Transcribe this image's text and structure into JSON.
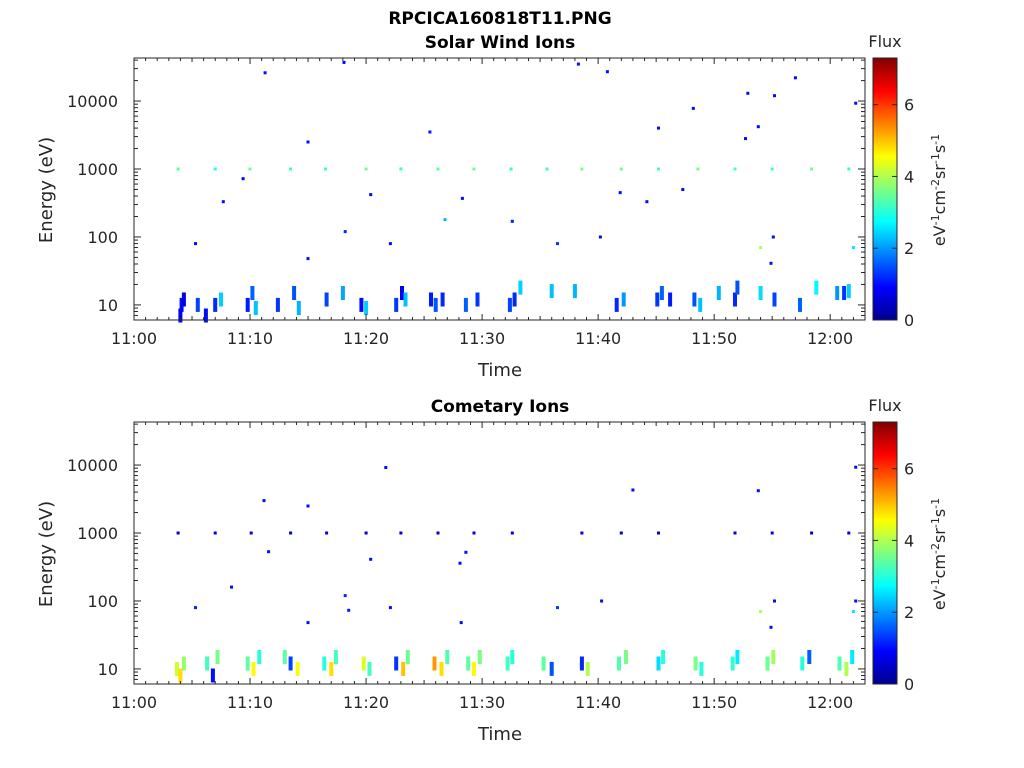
{
  "figure": {
    "filename": "RPCICA160818T11.PNG"
  },
  "colorbar": {
    "title": "Flux",
    "label": "eV-1cm-2sr-1s-1",
    "unit_parts": [
      "eV",
      "-1",
      "cm",
      "-2",
      "sr",
      "-1",
      "s",
      "-1"
    ],
    "range": [
      0,
      7.3
    ],
    "ticks": [
      0,
      2,
      4,
      6
    ],
    "tick_labels": [
      "0",
      "2",
      "4",
      "6"
    ],
    "colormap": "jet"
  },
  "colors": {
    "axis": "#262626",
    "background": "#ffffff"
  },
  "chart_data": [
    {
      "type": "heatmap",
      "title": "Solar Wind Ions",
      "xlabel": "Time",
      "ylabel": "Energy (eV)",
      "xlim": [
        "11:00",
        "12:03"
      ],
      "ylim": [
        6,
        43000
      ],
      "yscale": "log",
      "grid": false,
      "x_ticks": [
        "11:00",
        "11:10",
        "11:20",
        "11:30",
        "11:40",
        "11:50",
        "12:00"
      ],
      "y_ticks": [
        10,
        100,
        1000,
        10000
      ],
      "y_tick_labels": [
        "10",
        "100",
        "1000",
        "10000"
      ],
      "cells": [
        {
          "t": 4.1,
          "e": 10,
          "v": 1.0
        },
        {
          "t": 4.3,
          "e": 12,
          "v": 0.8
        },
        {
          "t": 4.0,
          "e": 7,
          "v": 0.9
        },
        {
          "t": 5.5,
          "e": 10,
          "v": 1.4
        },
        {
          "t": 6.2,
          "e": 7,
          "v": 1.0
        },
        {
          "t": 7.0,
          "e": 10,
          "v": 1.2
        },
        {
          "t": 7.5,
          "e": 12,
          "v": 2.4
        },
        {
          "t": 9.8,
          "e": 10,
          "v": 1.1
        },
        {
          "t": 10.2,
          "e": 15,
          "v": 1.6
        },
        {
          "t": 10.5,
          "e": 9,
          "v": 2.3
        },
        {
          "t": 12.4,
          "e": 10,
          "v": 1.3
        },
        {
          "t": 13.8,
          "e": 15,
          "v": 1.5
        },
        {
          "t": 14.2,
          "e": 9,
          "v": 2.2
        },
        {
          "t": 16.6,
          "e": 12,
          "v": 1.4
        },
        {
          "t": 18.0,
          "e": 15,
          "v": 2.1
        },
        {
          "t": 19.6,
          "e": 10,
          "v": 1.0
        },
        {
          "t": 20.0,
          "e": 9,
          "v": 2.4
        },
        {
          "t": 22.6,
          "e": 10,
          "v": 1.3
        },
        {
          "t": 23.1,
          "e": 15,
          "v": 0.9
        },
        {
          "t": 23.4,
          "e": 12,
          "v": 2.3
        },
        {
          "t": 25.6,
          "e": 12,
          "v": 1.1
        },
        {
          "t": 26.0,
          "e": 10,
          "v": 1.5
        },
        {
          "t": 26.6,
          "e": 12,
          "v": 1.2
        },
        {
          "t": 28.6,
          "e": 10,
          "v": 1.6
        },
        {
          "t": 29.6,
          "e": 12,
          "v": 1.3
        },
        {
          "t": 32.4,
          "e": 10,
          "v": 1.4
        },
        {
          "t": 32.8,
          "e": 12,
          "v": 1.2
        },
        {
          "t": 33.3,
          "e": 18,
          "v": 2.4
        },
        {
          "t": 36.0,
          "e": 16,
          "v": 2.3
        },
        {
          "t": 38.0,
          "e": 16,
          "v": 2.2
        },
        {
          "t": 41.6,
          "e": 10,
          "v": 1.2
        },
        {
          "t": 42.2,
          "e": 12,
          "v": 2.0
        },
        {
          "t": 45.1,
          "e": 12,
          "v": 1.3
        },
        {
          "t": 45.5,
          "e": 15,
          "v": 1.6
        },
        {
          "t": 46.2,
          "e": 12,
          "v": 1.1
        },
        {
          "t": 48.3,
          "e": 12,
          "v": 1.5
        },
        {
          "t": 48.8,
          "e": 10,
          "v": 2.3
        },
        {
          "t": 50.4,
          "e": 15,
          "v": 2.2
        },
        {
          "t": 51.8,
          "e": 12,
          "v": 1.2
        },
        {
          "t": 52.0,
          "e": 18,
          "v": 1.5
        },
        {
          "t": 54.0,
          "e": 15,
          "v": 2.5
        },
        {
          "t": 55.2,
          "e": 12,
          "v": 1.4
        },
        {
          "t": 57.4,
          "e": 10,
          "v": 1.6
        },
        {
          "t": 58.8,
          "e": 18,
          "v": 2.7
        },
        {
          "t": 60.6,
          "e": 15,
          "v": 2.0
        },
        {
          "t": 61.2,
          "e": 15,
          "v": 1.3
        },
        {
          "t": 61.6,
          "e": 16,
          "v": 2.4
        },
        {
          "t": 3.8,
          "e": 1000,
          "v": 3.4
        },
        {
          "t": 7.0,
          "e": 1000,
          "v": 3.0
        },
        {
          "t": 10.0,
          "e": 1000,
          "v": 3.5
        },
        {
          "t": 13.5,
          "e": 1000,
          "v": 3.1
        },
        {
          "t": 16.5,
          "e": 1000,
          "v": 3.2
        },
        {
          "t": 20.0,
          "e": 1000,
          "v": 3.6
        },
        {
          "t": 23.0,
          "e": 1000,
          "v": 3.2
        },
        {
          "t": 26.2,
          "e": 1000,
          "v": 3.4
        },
        {
          "t": 29.3,
          "e": 1000,
          "v": 3.5
        },
        {
          "t": 32.5,
          "e": 1000,
          "v": 3.1
        },
        {
          "t": 35.6,
          "e": 1000,
          "v": 3.2
        },
        {
          "t": 38.6,
          "e": 1000,
          "v": 3.6
        },
        {
          "t": 42.0,
          "e": 1000,
          "v": 3.5
        },
        {
          "t": 45.2,
          "e": 1000,
          "v": 3.2
        },
        {
          "t": 48.6,
          "e": 1000,
          "v": 3.6
        },
        {
          "t": 51.8,
          "e": 1000,
          "v": 3.3
        },
        {
          "t": 55.0,
          "e": 1000,
          "v": 3.2
        },
        {
          "t": 58.4,
          "e": 1000,
          "v": 3.5
        },
        {
          "t": 61.6,
          "e": 1000,
          "v": 3.1
        },
        {
          "t": 5.3,
          "e": 80,
          "v": 1.0
        },
        {
          "t": 7.7,
          "e": 330,
          "v": 1.0
        },
        {
          "t": 9.4,
          "e": 720,
          "v": 0.9
        },
        {
          "t": 11.3,
          "e": 26000,
          "v": 1.0
        },
        {
          "t": 15.0,
          "e": 2500,
          "v": 1.0
        },
        {
          "t": 15.0,
          "e": 48,
          "v": 1.0
        },
        {
          "t": 18.1,
          "e": 37000,
          "v": 0.9
        },
        {
          "t": 18.2,
          "e": 120,
          "v": 1.2
        },
        {
          "t": 20.4,
          "e": 420,
          "v": 1.0
        },
        {
          "t": 22.1,
          "e": 80,
          "v": 1.0
        },
        {
          "t": 25.5,
          "e": 3500,
          "v": 1.1
        },
        {
          "t": 26.8,
          "e": 180,
          "v": 2.2
        },
        {
          "t": 28.3,
          "e": 370,
          "v": 1.0
        },
        {
          "t": 32.6,
          "e": 170,
          "v": 1.1
        },
        {
          "t": 36.5,
          "e": 80,
          "v": 1.3
        },
        {
          "t": 38.3,
          "e": 35000,
          "v": 1.0
        },
        {
          "t": 40.2,
          "e": 100,
          "v": 1.0
        },
        {
          "t": 40.8,
          "e": 27000,
          "v": 1.0
        },
        {
          "t": 41.9,
          "e": 450,
          "v": 1.0
        },
        {
          "t": 44.2,
          "e": 330,
          "v": 1.0
        },
        {
          "t": 45.2,
          "e": 4000,
          "v": 1.0
        },
        {
          "t": 47.3,
          "e": 500,
          "v": 1.0
        },
        {
          "t": 48.2,
          "e": 7800,
          "v": 1.0
        },
        {
          "t": 52.7,
          "e": 2800,
          "v": 1.0
        },
        {
          "t": 52.9,
          "e": 13000,
          "v": 1.0
        },
        {
          "t": 53.8,
          "e": 4200,
          "v": 1.0
        },
        {
          "t": 54.9,
          "e": 41,
          "v": 1.0
        },
        {
          "t": 55.2,
          "e": 12000,
          "v": 1.0
        },
        {
          "t": 55.1,
          "e": 100,
          "v": 1.0
        },
        {
          "t": 57.0,
          "e": 22000,
          "v": 1.0
        },
        {
          "t": 62.2,
          "e": 9300,
          "v": 1.0
        },
        {
          "t": 62.0,
          "e": 70,
          "v": 2.6
        },
        {
          "t": 54.0,
          "e": 70,
          "v": 4.0
        }
      ]
    },
    {
      "type": "heatmap",
      "title": "Cometary Ions",
      "xlabel": "Time",
      "ylabel": "Energy (eV)",
      "xlim": [
        "11:00",
        "12:03"
      ],
      "ylim": [
        6,
        43000
      ],
      "yscale": "log",
      "grid": false,
      "x_ticks": [
        "11:00",
        "11:10",
        "11:20",
        "11:30",
        "11:40",
        "11:50",
        "12:00"
      ],
      "y_ticks": [
        10,
        100,
        1000,
        10000
      ],
      "y_tick_labels": [
        "10",
        "100",
        "1000",
        "10000"
      ],
      "cells": [
        {
          "t": 3.7,
          "e": 10,
          "v": 4.2
        },
        {
          "t": 4.0,
          "e": 8,
          "v": 4.8
        },
        {
          "t": 4.3,
          "e": 12,
          "v": 3.8
        },
        {
          "t": 6.3,
          "e": 12,
          "v": 3.2
        },
        {
          "t": 6.8,
          "e": 8,
          "v": 1.0
        },
        {
          "t": 7.2,
          "e": 15,
          "v": 3.6
        },
        {
          "t": 9.8,
          "e": 12,
          "v": 3.4
        },
        {
          "t": 10.3,
          "e": 10,
          "v": 4.6
        },
        {
          "t": 10.8,
          "e": 15,
          "v": 3.0
        },
        {
          "t": 13.0,
          "e": 15,
          "v": 3.4
        },
        {
          "t": 13.5,
          "e": 12,
          "v": 1.4
        },
        {
          "t": 14.1,
          "e": 10,
          "v": 4.5
        },
        {
          "t": 16.4,
          "e": 12,
          "v": 3.0
        },
        {
          "t": 17.0,
          "e": 10,
          "v": 4.8
        },
        {
          "t": 17.4,
          "e": 15,
          "v": 3.2
        },
        {
          "t": 19.8,
          "e": 12,
          "v": 4.3
        },
        {
          "t": 20.3,
          "e": 10,
          "v": 3.2
        },
        {
          "t": 22.6,
          "e": 12,
          "v": 1.3
        },
        {
          "t": 23.2,
          "e": 10,
          "v": 5.0
        },
        {
          "t": 23.6,
          "e": 15,
          "v": 3.5
        },
        {
          "t": 25.9,
          "e": 12,
          "v": 5.3
        },
        {
          "t": 26.5,
          "e": 10,
          "v": 4.8
        },
        {
          "t": 27.0,
          "e": 15,
          "v": 3.3
        },
        {
          "t": 28.8,
          "e": 12,
          "v": 3.4
        },
        {
          "t": 29.3,
          "e": 10,
          "v": 4.6
        },
        {
          "t": 29.8,
          "e": 15,
          "v": 3.6
        },
        {
          "t": 32.2,
          "e": 12,
          "v": 3.2
        },
        {
          "t": 32.6,
          "e": 15,
          "v": 3.0
        },
        {
          "t": 35.3,
          "e": 12,
          "v": 3.4
        },
        {
          "t": 36.0,
          "e": 10,
          "v": 1.5
        },
        {
          "t": 38.6,
          "e": 12,
          "v": 1.2
        },
        {
          "t": 39.1,
          "e": 10,
          "v": 4.0
        },
        {
          "t": 41.8,
          "e": 12,
          "v": 3.3
        },
        {
          "t": 42.4,
          "e": 15,
          "v": 3.6
        },
        {
          "t": 45.2,
          "e": 12,
          "v": 2.5
        },
        {
          "t": 45.6,
          "e": 15,
          "v": 3.0
        },
        {
          "t": 48.4,
          "e": 12,
          "v": 3.6
        },
        {
          "t": 48.9,
          "e": 10,
          "v": 3.0
        },
        {
          "t": 51.6,
          "e": 12,
          "v": 3.1
        },
        {
          "t": 52.0,
          "e": 15,
          "v": 2.6
        },
        {
          "t": 54.6,
          "e": 12,
          "v": 3.5
        },
        {
          "t": 55.1,
          "e": 15,
          "v": 3.9
        },
        {
          "t": 57.6,
          "e": 12,
          "v": 3.0
        },
        {
          "t": 58.2,
          "e": 15,
          "v": 1.6
        },
        {
          "t": 60.8,
          "e": 12,
          "v": 3.3
        },
        {
          "t": 61.4,
          "e": 10,
          "v": 4.0
        },
        {
          "t": 61.9,
          "e": 15,
          "v": 2.6
        },
        {
          "t": 3.8,
          "e": 1000,
          "v": 0.6
        },
        {
          "t": 7.0,
          "e": 1000,
          "v": 0.8
        },
        {
          "t": 10.1,
          "e": 1000,
          "v": 0.7
        },
        {
          "t": 13.5,
          "e": 1000,
          "v": 0.6
        },
        {
          "t": 16.6,
          "e": 1000,
          "v": 0.8
        },
        {
          "t": 20.0,
          "e": 1000,
          "v": 0.6
        },
        {
          "t": 23.0,
          "e": 1000,
          "v": 0.7
        },
        {
          "t": 26.2,
          "e": 1000,
          "v": 0.6
        },
        {
          "t": 29.3,
          "e": 1000,
          "v": 0.7
        },
        {
          "t": 32.6,
          "e": 1000,
          "v": 0.8
        },
        {
          "t": 38.6,
          "e": 1000,
          "v": 0.7
        },
        {
          "t": 42.0,
          "e": 1000,
          "v": 0.6
        },
        {
          "t": 45.2,
          "e": 1000,
          "v": 0.7
        },
        {
          "t": 51.8,
          "e": 1000,
          "v": 0.6
        },
        {
          "t": 55.0,
          "e": 1000,
          "v": 0.8
        },
        {
          "t": 58.4,
          "e": 1000,
          "v": 0.6
        },
        {
          "t": 61.6,
          "e": 1000,
          "v": 0.7
        },
        {
          "t": 5.3,
          "e": 80,
          "v": 1.1
        },
        {
          "t": 8.4,
          "e": 160,
          "v": 1.0
        },
        {
          "t": 11.2,
          "e": 3000,
          "v": 1.0
        },
        {
          "t": 11.6,
          "e": 530,
          "v": 1.0
        },
        {
          "t": 15.0,
          "e": 2500,
          "v": 1.0
        },
        {
          "t": 15.0,
          "e": 48,
          "v": 1.0
        },
        {
          "t": 18.2,
          "e": 120,
          "v": 1.2
        },
        {
          "t": 18.5,
          "e": 73,
          "v": 1.1
        },
        {
          "t": 20.4,
          "e": 410,
          "v": 1.0
        },
        {
          "t": 21.7,
          "e": 9200,
          "v": 1.0
        },
        {
          "t": 22.1,
          "e": 80,
          "v": 1.0
        },
        {
          "t": 28.1,
          "e": 360,
          "v": 1.0
        },
        {
          "t": 28.6,
          "e": 520,
          "v": 1.0
        },
        {
          "t": 28.2,
          "e": 48,
          "v": 1.0
        },
        {
          "t": 36.5,
          "e": 80,
          "v": 1.3
        },
        {
          "t": 40.3,
          "e": 100,
          "v": 1.0
        },
        {
          "t": 43.0,
          "e": 4300,
          "v": 1.0
        },
        {
          "t": 53.8,
          "e": 4200,
          "v": 1.0
        },
        {
          "t": 54.9,
          "e": 41,
          "v": 1.0
        },
        {
          "t": 55.2,
          "e": 100,
          "v": 1.0
        },
        {
          "t": 62.2,
          "e": 9300,
          "v": 1.0
        },
        {
          "t": 62.2,
          "e": 100,
          "v": 1.0
        },
        {
          "t": 62.0,
          "e": 70,
          "v": 2.6
        },
        {
          "t": 54.0,
          "e": 70,
          "v": 4.0
        }
      ]
    }
  ]
}
